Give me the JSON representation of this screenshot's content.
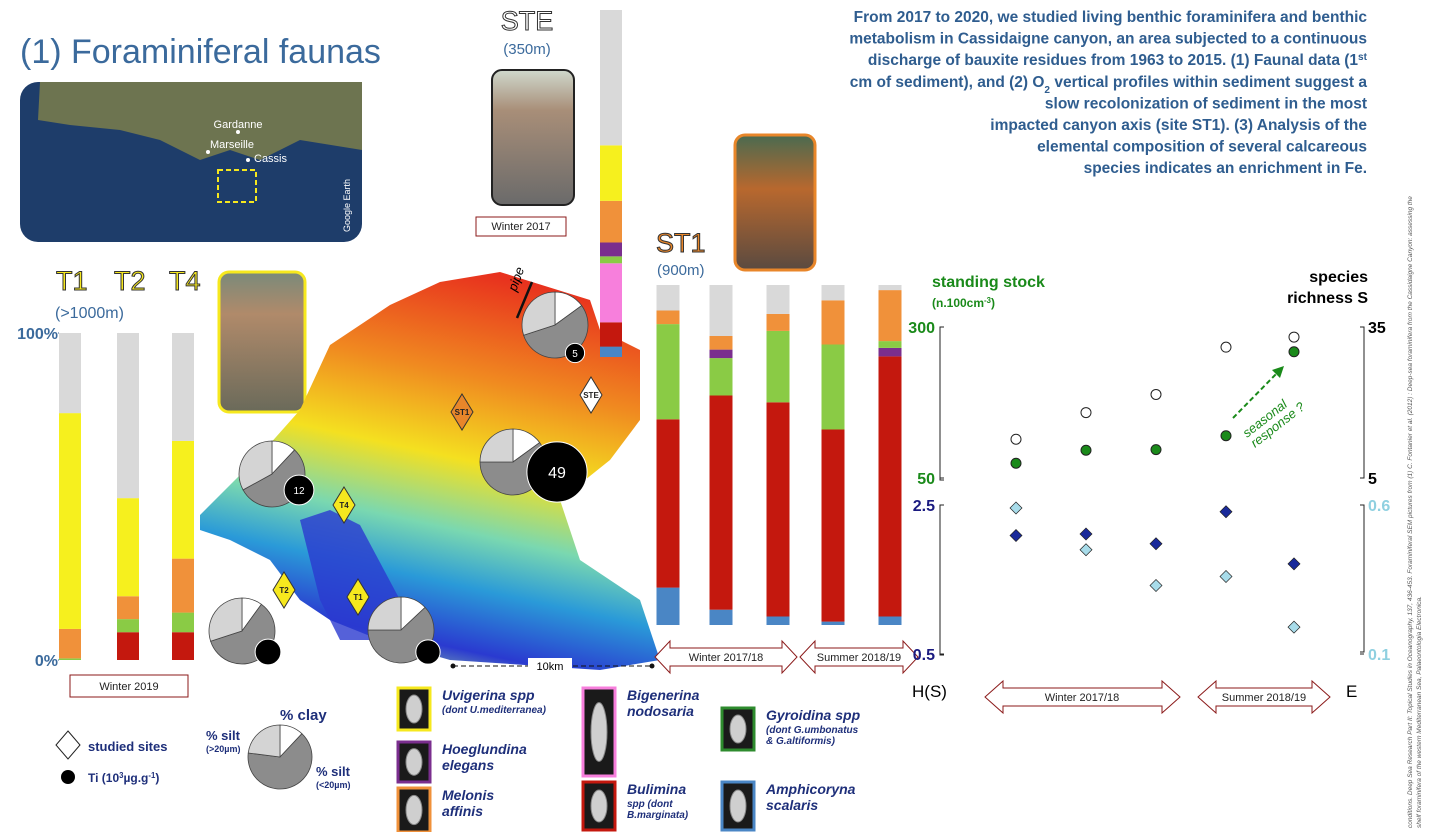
{
  "title": "(1) Foraminiferal faunas",
  "intro": [
    [
      {
        "text": "From 2017 to 2020, we studied living benthic foraminifera and benthic"
      }
    ],
    [
      {
        "text": "metabolism in Cassidaigne canyon, an area subjected to a continuous"
      }
    ],
    [
      {
        "text": "discharge of bauxite residues from 1963 to 2015. (1) Faunal data (1"
      },
      {
        "text": "st",
        "shift": "super"
      }
    ],
    [
      {
        "text": "cm of sediment), and (2) O"
      },
      {
        "text": "2",
        "shift": "sub"
      },
      {
        "text": " vertical profiles within sediment suggest a"
      }
    ],
    [
      {
        "text": "slow recolonization of sediment in the most"
      }
    ],
    [
      {
        "text": "impacted canyon axis (site ST1). (3) Analysis of the"
      }
    ],
    [
      {
        "text": "elemental composition of several calcareous"
      }
    ],
    [
      {
        "text": "species indicates an enrichment in Fe."
      }
    ]
  ],
  "map_inset": {
    "labels": [
      "Gardanne",
      "Marseille",
      "Cassis"
    ],
    "credit": "Google Earth"
  },
  "t_sites": {
    "names": [
      "T1",
      "T2",
      "T4"
    ],
    "depth": "(>1000m)",
    "season": "Winter 2019",
    "ylim": [
      0,
      100
    ],
    "yticks": [
      {
        "value": 0,
        "label": "0%"
      },
      {
        "value": 100,
        "label": "100%"
      }
    ],
    "bars": [
      {
        "segments": [
          {
            "value": 0.5,
            "color": "#8acb45"
          },
          {
            "value": 9,
            "color": "#f0913a"
          },
          {
            "value": 66,
            "color": "#f6f01e"
          },
          {
            "value": 24.5,
            "color": "#d9d9d9"
          }
        ]
      },
      {
        "segments": [
          {
            "value": 8.5,
            "color": "#c4180e"
          },
          {
            "value": 4,
            "color": "#8acb45"
          },
          {
            "value": 7,
            "color": "#f0913a"
          },
          {
            "value": 30,
            "color": "#f6f01e"
          },
          {
            "value": 50.5,
            "color": "#d9d9d9"
          }
        ]
      },
      {
        "segments": [
          {
            "value": 8.5,
            "color": "#c4180e"
          },
          {
            "value": 6,
            "color": "#8acb45"
          },
          {
            "value": 16.5,
            "color": "#f0913a"
          },
          {
            "value": 36,
            "color": "#f6f01e"
          },
          {
            "value": 33,
            "color": "#d9d9d9"
          }
        ]
      }
    ]
  },
  "ste": {
    "name": "STE",
    "depth": "(350m)",
    "season": "Winter 2017",
    "ylim": [
      0,
      100
    ],
    "bars": [
      {
        "segments": [
          {
            "value": 3,
            "color": "#4a86c5"
          },
          {
            "value": 7,
            "color": "#c4180e"
          },
          {
            "value": 17,
            "color": "#f77fdc"
          },
          {
            "value": 2,
            "color": "#8acb45"
          },
          {
            "value": 4,
            "color": "#7a2e8e"
          },
          {
            "value": 12,
            "color": "#f0913a"
          },
          {
            "value": 16,
            "color": "#f6f01e"
          },
          {
            "value": 39,
            "color": "#d9d9d9"
          }
        ]
      }
    ]
  },
  "st1": {
    "name": "ST1",
    "depth": "(900m)",
    "seasons": [
      "Winter 2017/18",
      "Summer 2018/19"
    ],
    "ylim": [
      0,
      100
    ],
    "bars": [
      {
        "segments": [
          {
            "value": 11,
            "color": "#4a86c5"
          },
          {
            "value": 49.5,
            "color": "#c4180e"
          },
          {
            "value": 28,
            "color": "#8acb45"
          },
          {
            "value": 4,
            "color": "#f0913a"
          },
          {
            "value": 7.5,
            "color": "#d9d9d9"
          }
        ]
      },
      {
        "segments": [
          {
            "value": 4.5,
            "color": "#4a86c5"
          },
          {
            "value": 63,
            "color": "#c4180e"
          },
          {
            "value": 11,
            "color": "#8acb45"
          },
          {
            "value": 2.5,
            "color": "#7a2e8e"
          },
          {
            "value": 4,
            "color": "#f0913a"
          },
          {
            "value": 15,
            "color": "#d9d9d9"
          }
        ]
      },
      {
        "segments": [
          {
            "value": 2.5,
            "color": "#4a86c5"
          },
          {
            "value": 63,
            "color": "#c4180e"
          },
          {
            "value": 21,
            "color": "#8acb45"
          },
          {
            "value": 5,
            "color": "#f0913a"
          },
          {
            "value": 8.5,
            "color": "#d9d9d9"
          }
        ]
      },
      {
        "segments": [
          {
            "value": 1,
            "color": "#4a86c5"
          },
          {
            "value": 56.5,
            "color": "#c4180e"
          },
          {
            "value": 25,
            "color": "#8acb45"
          },
          {
            "value": 13,
            "color": "#f0913a"
          },
          {
            "value": 4.5,
            "color": "#d9d9d9"
          }
        ]
      },
      {
        "segments": [
          {
            "value": 2.5,
            "color": "#4a86c5"
          },
          {
            "value": 76.5,
            "color": "#c4180e"
          },
          {
            "value": 2.5,
            "color": "#7a2e8e"
          },
          {
            "value": 2,
            "color": "#8acb45"
          },
          {
            "value": 15,
            "color": "#f0913a"
          },
          {
            "value": 1.5,
            "color": "#d9d9d9"
          }
        ]
      }
    ]
  },
  "map": {
    "sites": [
      {
        "label": "ST1",
        "color": "#e8862a"
      },
      {
        "label": "STE",
        "color": "#ffffff"
      },
      {
        "label": "T4",
        "color": "#f6e81e"
      },
      {
        "label": "T2",
        "color": "#f6e81e"
      },
      {
        "label": "T1",
        "color": "#f6e81e"
      }
    ],
    "pipe": "pipe",
    "scale": "10km",
    "pie_colors": [
      "#ffffff",
      "#8c8c8c",
      "#d4d4d4"
    ],
    "pies": [
      {
        "values": [
          15,
          55,
          30
        ],
        "ti": 5,
        "ti_printed": true
      },
      {
        "values": [
          15,
          60,
          25
        ],
        "ti": 49,
        "ti_printed": true
      },
      {
        "values": [
          12,
          55,
          33
        ],
        "ti": 12,
        "ti_printed": true
      },
      {
        "values": [
          10,
          60,
          30
        ],
        "ti": 9,
        "ti_printed": false
      },
      {
        "values": [
          13,
          62,
          25
        ],
        "ti": 8,
        "ti_printed": false
      }
    ]
  },
  "scatter": {
    "seasons": [
      "Winter 2017/18",
      "Summer 2018/19"
    ],
    "annotation": [
      "seasonal",
      "response ?"
    ],
    "upper": {
      "ylabel": [
        {
          "text": "standing stock"
        }
      ],
      "ylabel2": [
        {
          "text": "(n.100cm"
        },
        {
          "text": "-3",
          "shift": "super"
        },
        {
          "text": ")"
        }
      ],
      "y2label": [
        "species",
        "richness S"
      ],
      "ylim": [
        50,
        300
      ],
      "yticks": [
        50,
        300
      ],
      "ycolor": "#1a8a1a",
      "y2lim": [
        5,
        35
      ],
      "y2ticks": [
        5,
        35
      ],
      "y2color": "#000000",
      "series": [
        {
          "marker": "circle",
          "color": "#1a8a1a",
          "values": [
            74.5,
            96,
            97,
            120,
            259
          ]
        },
        {
          "marker": "circle",
          "color": "#ffffff",
          "axis": "y2",
          "values": [
            12.7,
            18,
            21.6,
            31,
            33
          ]
        }
      ]
    },
    "lower": {
      "ylabel": "H(S)",
      "y2label": "E",
      "ylim": [
        0.5,
        2.5
      ],
      "yticks": [
        0.5,
        2.5
      ],
      "ycolor": "#1a1a80",
      "y2lim": [
        0.1,
        0.6
      ],
      "y2ticks": [
        0.1,
        0.6
      ],
      "y2color": "#8fd0e0",
      "series": [
        {
          "marker": "diamond",
          "color": "#1a2a9a",
          "values": [
            2.09,
            2.11,
            1.98,
            2.41,
            1.71
          ]
        },
        {
          "marker": "diamond",
          "color": "#a8dcea",
          "axis": "y2",
          "values": [
            0.59,
            0.45,
            0.33,
            0.36,
            0.19
          ]
        }
      ]
    }
  },
  "legend": {
    "studied_sites": "studied sites",
    "ti": [
      {
        "text": "Ti (10"
      },
      {
        "text": "3",
        "shift": "super"
      },
      {
        "text": "µg.g"
      },
      {
        "text": "-1",
        "shift": "super"
      },
      {
        "text": ")"
      }
    ],
    "pie_labels": [
      "% clay",
      "% silt",
      "(>20µm)",
      "% silt",
      "(<20µm)"
    ],
    "pie_values": [
      12,
      65,
      23
    ],
    "taxa": [
      {
        "color": "#f6e81e",
        "lines": [
          "Uvigerina spp"
        ],
        "note": [
          "(dont U.mediterranea)"
        ]
      },
      {
        "color": "#7a2e8e",
        "lines": [
          "Hoeglundina",
          "elegans"
        ],
        "note": []
      },
      {
        "color": "#f0913a",
        "lines": [
          "Melonis",
          "affinis"
        ],
        "note": []
      },
      {
        "color": "#f77fdc",
        "lines": [
          "Bigenerina",
          "nodosaria"
        ],
        "note": []
      },
      {
        "color": "#c4180e",
        "lines": [
          "Bulimina"
        ],
        "note": [
          "spp (dont",
          "B.marginata)"
        ]
      },
      {
        "color": "#2e8b2e",
        "lines": [
          "Gyroidina spp"
        ],
        "note": [
          "(dont G.umbonatus",
          "& G.altiformis)"
        ]
      },
      {
        "color": "#4a86c5",
        "lines": [
          "Amphicoryna",
          "scalaris"
        ],
        "note": []
      }
    ]
  },
  "citation": [
    "conditions. Deep Sea Research Part II: Topical Studies in Oceanography, 137, 436-453. Foraminiferal SEM pictures from (1) C. Fontanier et al. (2012) : Deep-sea foraminifera from the Cassidaigne Canyon: assessing the",
    "shelf foraminifera of the western Mediterranean Sea, Palaeontologia Electronica."
  ]
}
